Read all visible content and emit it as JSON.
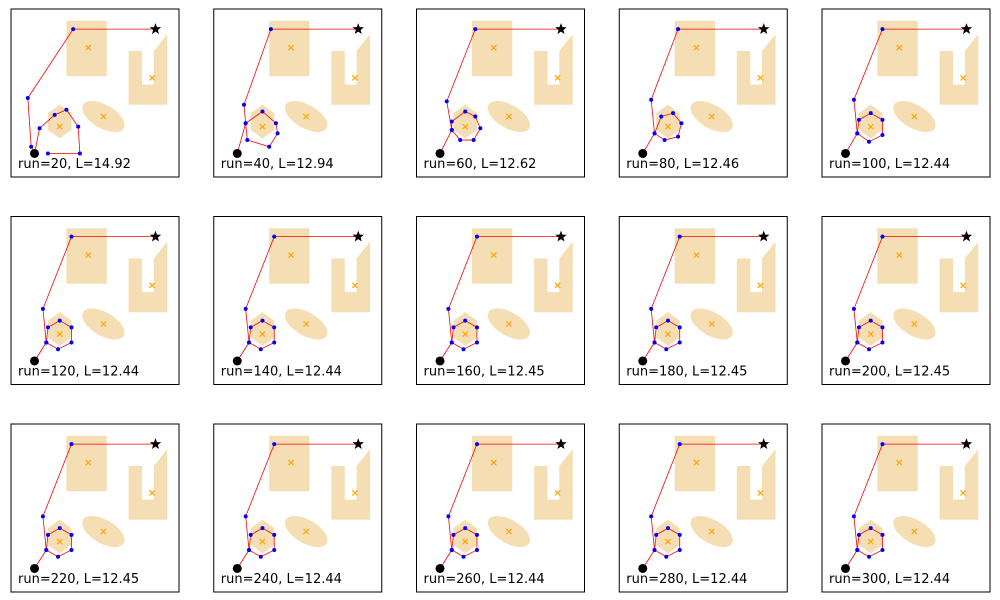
{
  "figure": {
    "rows": 3,
    "cols": 5
  },
  "colors": {
    "obstacle_fill": "#f5deb3",
    "centroid_marker": "#ffa500",
    "path_line": "#ff0000",
    "waypoint": "#0000ff",
    "start_marker": "#000000",
    "goal_marker": "#000000"
  },
  "chart_data": {
    "type": "scatter",
    "xlim": [
      0,
      10
    ],
    "ylim": [
      0,
      10
    ],
    "grid": false,
    "axes_ticks": false,
    "start": {
      "x": 1.4,
      "y": 1.4,
      "marker": "circle"
    },
    "goal": {
      "x": 8.6,
      "y": 8.8,
      "marker": "star"
    },
    "obstacles": [
      {
        "shape": "polygon",
        "name": "pentagon",
        "points": [
          [
            3.3,
            9.3
          ],
          [
            5.7,
            9.3
          ],
          [
            5.7,
            6.0
          ],
          [
            3.3,
            6.0
          ],
          [
            3.3,
            8.5
          ]
        ],
        "center": [
          4.6,
          7.7
        ]
      },
      {
        "shape": "polygon",
        "name": "u-shape",
        "points": [
          [
            7.0,
            7.5
          ],
          [
            7.8,
            7.5
          ],
          [
            7.8,
            5.5
          ],
          [
            8.5,
            5.5
          ],
          [
            8.5,
            7.5
          ],
          [
            9.3,
            8.5
          ],
          [
            9.3,
            4.3
          ],
          [
            7.0,
            4.3
          ]
        ],
        "center": [
          8.4,
          5.9
        ]
      },
      {
        "shape": "ellipse",
        "name": "ellipse",
        "center": [
          5.5,
          3.6
        ],
        "rx": 1.4,
        "ry": 0.7,
        "angle": -30
      },
      {
        "shape": "polygon",
        "name": "hexagon",
        "points": [
          [
            2.9,
            2.3
          ],
          [
            3.6,
            2.8
          ],
          [
            3.6,
            3.8
          ],
          [
            2.9,
            4.3
          ],
          [
            2.2,
            3.8
          ],
          [
            2.2,
            2.8
          ]
        ],
        "center": [
          2.9,
          3.0
        ]
      }
    ],
    "panels": [
      {
        "label": "run=20, L=14.92",
        "path": [
          [
            1.4,
            1.4
          ],
          [
            1.2,
            1.8
          ],
          [
            1.0,
            4.7
          ],
          [
            3.7,
            8.8
          ],
          [
            8.6,
            8.8
          ]
        ],
        "hexagon_path": [
          [
            2.2,
            1.4
          ],
          [
            4.1,
            1.4
          ],
          [
            4.0,
            3.0
          ],
          [
            3.3,
            4.0
          ],
          [
            2.6,
            3.7
          ],
          [
            1.7,
            2.9
          ],
          [
            1.4,
            1.4
          ]
        ]
      },
      {
        "label": "run=40, L=12.94",
        "path": [
          [
            1.4,
            1.4
          ],
          [
            1.9,
            3.2
          ],
          [
            1.8,
            4.3
          ],
          [
            3.4,
            8.8
          ],
          [
            8.6,
            8.8
          ]
        ],
        "hexagon_path": [
          [
            1.9,
            3.2
          ],
          [
            2.0,
            2.2
          ],
          [
            3.3,
            1.8
          ],
          [
            3.8,
            2.6
          ],
          [
            3.7,
            3.2
          ],
          [
            2.9,
            3.9
          ],
          [
            1.9,
            3.2
          ]
        ]
      },
      {
        "label": "run=60, L=12.62",
        "path": [
          [
            1.4,
            1.4
          ],
          [
            2.1,
            2.8
          ],
          [
            1.8,
            4.5
          ],
          [
            3.5,
            8.8
          ],
          [
            8.6,
            8.8
          ]
        ],
        "hexagon_path": [
          [
            2.1,
            2.8
          ],
          [
            2.6,
            2.2
          ],
          [
            3.4,
            2.2
          ],
          [
            3.8,
            2.9
          ],
          [
            3.5,
            3.6
          ],
          [
            2.9,
            3.9
          ],
          [
            2.1,
            3.3
          ],
          [
            2.1,
            2.8
          ]
        ]
      },
      {
        "label": "run=80, L=12.46",
        "path": [
          [
            1.4,
            1.4
          ],
          [
            2.1,
            2.6
          ],
          [
            1.9,
            4.6
          ],
          [
            3.5,
            8.8
          ],
          [
            8.6,
            8.8
          ]
        ],
        "hexagon_path": [
          [
            2.1,
            2.6
          ],
          [
            2.7,
            2.2
          ],
          [
            3.5,
            2.4
          ],
          [
            3.7,
            3.2
          ],
          [
            3.2,
            3.8
          ],
          [
            2.5,
            3.6
          ],
          [
            2.1,
            2.6
          ]
        ]
      },
      {
        "label": "run=100, L=12.44",
        "path": [
          [
            1.4,
            1.4
          ],
          [
            2.1,
            2.6
          ],
          [
            1.9,
            4.6
          ],
          [
            3.6,
            8.8
          ],
          [
            8.6,
            8.8
          ]
        ],
        "hexagon_path": [
          [
            2.1,
            2.6
          ],
          [
            2.8,
            2.1
          ],
          [
            3.6,
            2.5
          ],
          [
            3.6,
            3.4
          ],
          [
            2.9,
            3.8
          ],
          [
            2.2,
            3.4
          ],
          [
            2.1,
            2.6
          ]
        ]
      },
      {
        "label": "run=120, L=12.44",
        "path": [
          [
            1.4,
            1.4
          ],
          [
            2.1,
            2.5
          ],
          [
            1.9,
            4.5
          ],
          [
            3.6,
            8.8
          ],
          [
            8.6,
            8.8
          ]
        ],
        "hexagon_path": [
          [
            2.1,
            2.5
          ],
          [
            2.8,
            2.1
          ],
          [
            3.6,
            2.5
          ],
          [
            3.6,
            3.4
          ],
          [
            2.9,
            3.8
          ],
          [
            2.2,
            3.4
          ],
          [
            2.1,
            2.5
          ]
        ]
      },
      {
        "label": "run=140, L=12.44",
        "path": [
          [
            1.4,
            1.4
          ],
          [
            2.1,
            2.5
          ],
          [
            1.9,
            4.5
          ],
          [
            3.6,
            8.8
          ],
          [
            8.6,
            8.8
          ]
        ],
        "hexagon_path": [
          [
            2.1,
            2.5
          ],
          [
            2.8,
            2.1
          ],
          [
            3.6,
            2.5
          ],
          [
            3.6,
            3.4
          ],
          [
            2.9,
            3.8
          ],
          [
            2.2,
            3.4
          ],
          [
            2.1,
            2.5
          ]
        ]
      },
      {
        "label": "run=160, L=12.45",
        "path": [
          [
            1.4,
            1.4
          ],
          [
            2.1,
            2.5
          ],
          [
            1.9,
            4.5
          ],
          [
            3.6,
            8.8
          ],
          [
            8.6,
            8.8
          ]
        ],
        "hexagon_path": [
          [
            2.1,
            2.5
          ],
          [
            2.8,
            2.1
          ],
          [
            3.6,
            2.5
          ],
          [
            3.6,
            3.4
          ],
          [
            2.9,
            3.8
          ],
          [
            2.2,
            3.4
          ],
          [
            2.1,
            2.5
          ]
        ]
      },
      {
        "label": "run=180, L=12.45",
        "path": [
          [
            1.4,
            1.4
          ],
          [
            2.1,
            2.5
          ],
          [
            1.9,
            4.5
          ],
          [
            3.6,
            8.8
          ],
          [
            8.6,
            8.8
          ]
        ],
        "hexagon_path": [
          [
            2.1,
            2.5
          ],
          [
            2.8,
            2.1
          ],
          [
            3.6,
            2.5
          ],
          [
            3.6,
            3.4
          ],
          [
            2.9,
            3.8
          ],
          [
            2.2,
            3.4
          ],
          [
            2.1,
            2.5
          ]
        ]
      },
      {
        "label": "run=200, L=12.45",
        "path": [
          [
            1.4,
            1.4
          ],
          [
            2.1,
            2.5
          ],
          [
            1.9,
            4.5
          ],
          [
            3.6,
            8.8
          ],
          [
            8.6,
            8.8
          ]
        ],
        "hexagon_path": [
          [
            2.1,
            2.5
          ],
          [
            2.8,
            2.1
          ],
          [
            3.6,
            2.5
          ],
          [
            3.6,
            3.4
          ],
          [
            2.9,
            3.8
          ],
          [
            2.2,
            3.4
          ],
          [
            2.1,
            2.5
          ]
        ]
      },
      {
        "label": "run=220, L=12.45",
        "path": [
          [
            1.4,
            1.4
          ],
          [
            2.1,
            2.5
          ],
          [
            1.9,
            4.5
          ],
          [
            3.6,
            8.8
          ],
          [
            8.6,
            8.8
          ]
        ],
        "hexagon_path": [
          [
            2.1,
            2.5
          ],
          [
            2.8,
            2.1
          ],
          [
            3.6,
            2.5
          ],
          [
            3.6,
            3.4
          ],
          [
            2.9,
            3.8
          ],
          [
            2.2,
            3.4
          ],
          [
            2.1,
            2.5
          ]
        ]
      },
      {
        "label": "run=240, L=12.44",
        "path": [
          [
            1.4,
            1.4
          ],
          [
            2.1,
            2.5
          ],
          [
            1.9,
            4.5
          ],
          [
            3.6,
            8.8
          ],
          [
            8.6,
            8.8
          ]
        ],
        "hexagon_path": [
          [
            2.1,
            2.5
          ],
          [
            2.8,
            2.1
          ],
          [
            3.6,
            2.5
          ],
          [
            3.6,
            3.4
          ],
          [
            2.9,
            3.8
          ],
          [
            2.2,
            3.4
          ],
          [
            2.1,
            2.5
          ]
        ]
      },
      {
        "label": "run=260, L=12.44",
        "path": [
          [
            1.4,
            1.4
          ],
          [
            2.1,
            2.5
          ],
          [
            1.9,
            4.5
          ],
          [
            3.6,
            8.8
          ],
          [
            8.6,
            8.8
          ]
        ],
        "hexagon_path": [
          [
            2.1,
            2.5
          ],
          [
            2.8,
            2.1
          ],
          [
            3.6,
            2.5
          ],
          [
            3.6,
            3.4
          ],
          [
            2.9,
            3.8
          ],
          [
            2.2,
            3.4
          ],
          [
            2.1,
            2.5
          ]
        ]
      },
      {
        "label": "run=280, L=12.44",
        "path": [
          [
            1.4,
            1.4
          ],
          [
            2.1,
            2.5
          ],
          [
            1.9,
            4.5
          ],
          [
            3.6,
            8.8
          ],
          [
            8.6,
            8.8
          ]
        ],
        "hexagon_path": [
          [
            2.1,
            2.5
          ],
          [
            2.8,
            2.1
          ],
          [
            3.6,
            2.5
          ],
          [
            3.6,
            3.4
          ],
          [
            2.9,
            3.8
          ],
          [
            2.2,
            3.4
          ],
          [
            2.1,
            2.5
          ]
        ]
      },
      {
        "label": "run=300, L=12.44",
        "path": [
          [
            1.4,
            1.4
          ],
          [
            2.1,
            2.5
          ],
          [
            1.9,
            4.5
          ],
          [
            3.6,
            8.8
          ],
          [
            8.6,
            8.8
          ]
        ],
        "hexagon_path": [
          [
            2.1,
            2.5
          ],
          [
            2.8,
            2.1
          ],
          [
            3.6,
            2.5
          ],
          [
            3.6,
            3.4
          ],
          [
            2.9,
            3.8
          ],
          [
            2.2,
            3.4
          ],
          [
            2.1,
            2.5
          ]
        ]
      }
    ]
  }
}
